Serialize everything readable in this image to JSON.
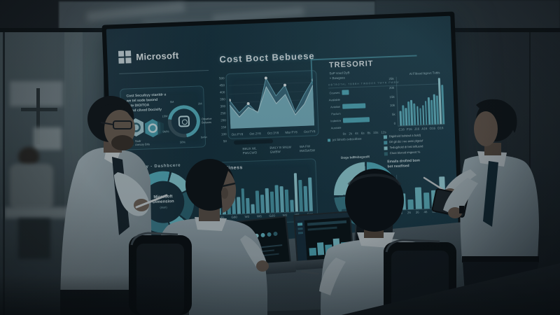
{
  "screen": {
    "brand": "Microsoft",
    "title": "Cost Boct Bebuese",
    "left_card": {
      "text_lines": [
        "Cost Secuibyy stanldr u",
        "we tel sode bwond",
        "sote DIOITOA",
        "y ond clived Docisify"
      ],
      "callouts": [
        "5M",
        "2M",
        "10M",
        "9M%",
        "50%",
        "bwlw"
      ],
      "icon_caption": [
        "Obselve",
        "Belssos"
      ],
      "legend": [
        "Sodr",
        "Armory Brls"
      ]
    },
    "left_caption": "Day  - Dashbcere",
    "left_donut": {
      "center_lines": [
        "Microsoft",
        "Dimension",
        "(msn)"
      ],
      "segments": [
        30,
        14,
        18,
        10,
        16,
        12
      ],
      "colors": [
        "#57b9c9",
        "#8fd8e0",
        "#2f6b7a",
        "#6cc5d2",
        "#3d8494",
        "#a8e2e8"
      ]
    },
    "main_chart": {
      "type": "area",
      "y_ticks": [
        "500",
        "450",
        "400",
        "350",
        "300",
        "250",
        "200",
        "150",
        "100",
        "50"
      ],
      "x_ticks": [
        "Oct FY8",
        "Oct 2Y8",
        "Oct 3Y8",
        "Mar FY8",
        "Oct FY8"
      ],
      "series_back": [
        55,
        30,
        47,
        27,
        95,
        60,
        80,
        28,
        60,
        88
      ],
      "series_front": [
        46,
        22,
        40,
        30,
        78,
        45,
        62,
        22,
        42,
        78
      ],
      "marker_indices": [
        0,
        2,
        4,
        6,
        9
      ],
      "footnotes": [
        "BBUX WL FWLCWO",
        "BWLY B SNLW GWBW",
        "WA FW BWSWSW"
      ]
    },
    "bottom_chart": {
      "type": "bar",
      "title": "Oce Bidiness",
      "values": [
        35,
        45,
        30,
        50,
        42,
        62,
        38,
        22,
        55,
        45,
        60,
        52,
        68,
        64,
        55,
        30,
        95,
        78,
        62,
        82
      ],
      "x_ticks": [
        "G20",
        "G80",
        "W2",
        "W6",
        "G20",
        "W2",
        "W6",
        "G20"
      ],
      "y_ticks": [
        "500",
        "400",
        "300",
        "200",
        "100"
      ]
    },
    "tresorit": {
      "title": "TRESORIT",
      "subtitle": "SoP soud DyB",
      "bullet": "+ Bowgses",
      "right_note": "Al Fibsod bgcvs Tvbls",
      "divider_note": "OBTBOTAL TBBBH TWBOOS TWTR PWBW",
      "hbar": {
        "type": "bar-horizontal",
        "rows": [
          {
            "label": "Courses",
            "value": 16
          },
          {
            "label": "Available",
            "value": null
          },
          {
            "label": "Aviation",
            "value": 55
          },
          {
            "label": "Paclum",
            "value": null
          },
          {
            "label": "Indentre",
            "value": 64
          },
          {
            "label": "Australe",
            "value": null
          }
        ],
        "x_ticks": [
          "0s",
          "2s",
          "4s",
          "6s",
          "8s",
          "10s",
          "12s"
        ]
      },
      "vbar": {
        "type": "bar",
        "y_ticks": [
          "25k",
          "20k",
          "15k",
          "10k",
          "5k",
          "0"
        ],
        "values": [
          30,
          42,
          36,
          48,
          52,
          44,
          38,
          34,
          40,
          48,
          56,
          50,
          62,
          58,
          95,
          80
        ],
        "x_ticks": [
          "C16",
          "F16",
          "J16",
          "A16",
          "O16",
          "D16"
        ]
      },
      "section_note": "jot Slnsrb ovbscdbse",
      "legend": [
        {
          "color": "#7ed0da",
          "label": "Digidroid bolsbut a bold)"
        },
        {
          "color": "#4da9bb",
          "label": "Dil gil diz i wo avisi plgsiof"
        },
        {
          "color": "#9adde4",
          "label": "Tedugihold di bist influsird"
        },
        {
          "color": "#35707e",
          "label": "Clout blorsid imgsvst %"
        }
      ],
      "donut": {
        "type": "pie",
        "label_top": "Dogs bdBsbsgsoM",
        "center": "TRESO",
        "segments": [
          26,
          16,
          22,
          14,
          22
        ],
        "colors": [
          "#9bdde4",
          "#57b9c9",
          "#2f6b7a",
          "#7ccfdb",
          "#3d8494"
        ],
        "tag": "Coslow dBsqsble"
      },
      "mini_chart": {
        "type": "bar",
        "heading": [
          "Emails drofted bom",
          "bot nestfised"
        ],
        "values": [
          46,
          28,
          62,
          46,
          52,
          90
        ],
        "x_ticks": [
          "16",
          "26",
          "36",
          "46",
          "56",
          "66"
        ],
        "y_ticks": [
          "8",
          "6",
          "4",
          "2"
        ]
      }
    }
  }
}
